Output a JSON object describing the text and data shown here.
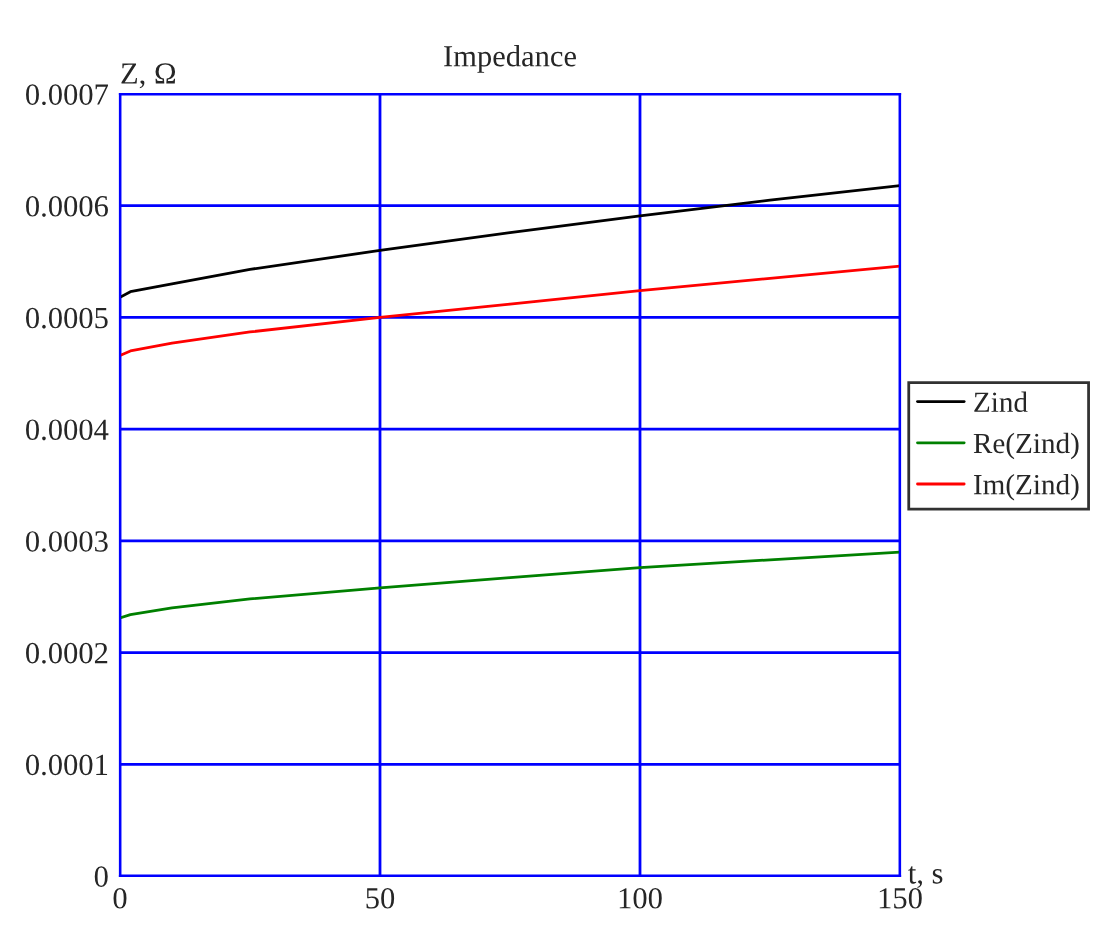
{
  "chart_data": {
    "type": "line",
    "title": "Impedance",
    "xlabel": "t, s",
    "ylabel": "Z, Ω",
    "x": [
      0,
      2,
      10,
      25,
      50,
      75,
      100,
      125,
      150
    ],
    "series": [
      {
        "name": "Zind",
        "color": "#000000",
        "values": [
          0.000518,
          0.000523,
          0.00053,
          0.000543,
          0.00056,
          0.000576,
          0.000591,
          0.000605,
          0.000618
        ]
      },
      {
        "name": "Re(Zind)",
        "color": "#008000",
        "values": [
          0.000231,
          0.000234,
          0.00024,
          0.000248,
          0.000258,
          0.000267,
          0.000276,
          0.000283,
          0.00029
        ]
      },
      {
        "name": "Im(Zind)",
        "color": "#ff0000",
        "values": [
          0.000466,
          0.00047,
          0.000477,
          0.000487,
          0.0005,
          0.000512,
          0.000524,
          0.000535,
          0.000546
        ]
      }
    ],
    "xlim": [
      0,
      150
    ],
    "xticks": [
      0,
      50,
      100,
      150
    ],
    "ylim": [
      0,
      0.0007
    ],
    "yticks": [
      0,
      0.0001,
      0.0002,
      0.0003,
      0.0004,
      0.0005,
      0.0006,
      0.0007
    ],
    "grid": true,
    "legend": "right",
    "line_style": "solid",
    "marker": "none"
  }
}
